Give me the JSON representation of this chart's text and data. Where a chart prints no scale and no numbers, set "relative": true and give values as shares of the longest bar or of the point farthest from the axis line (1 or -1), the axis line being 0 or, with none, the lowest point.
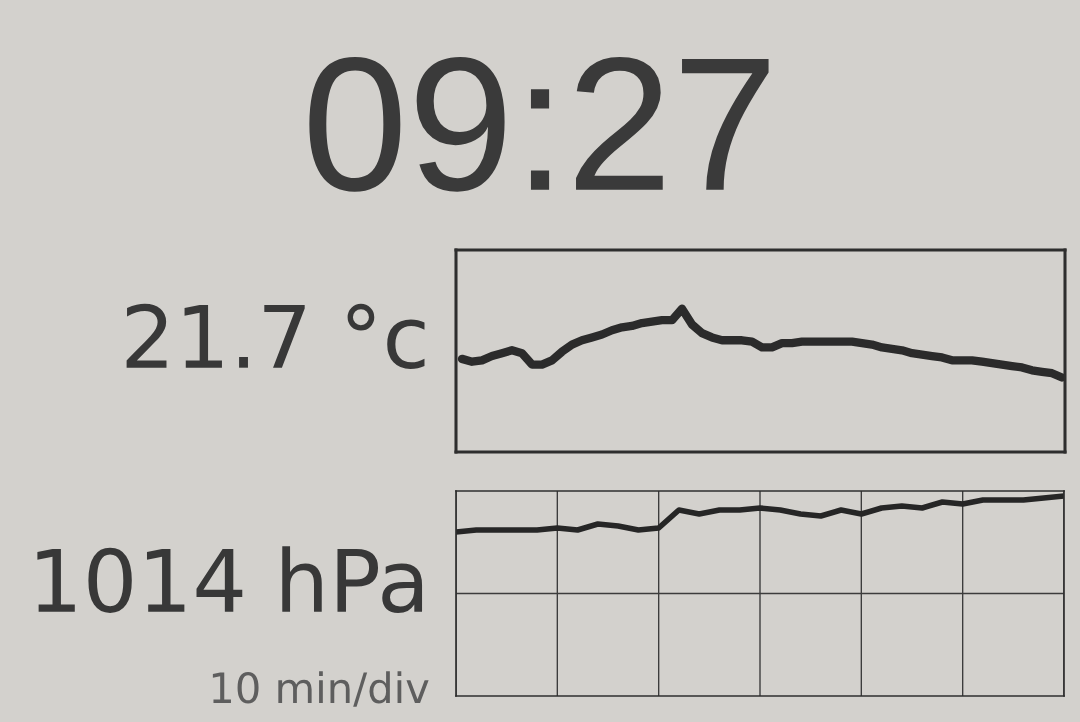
{
  "chart_data": [
    {
      "type": "other",
      "title": "09:27"
    },
    {
      "type": "line",
      "ylabel": "21.7 °c",
      "relative": true,
      "color": "#2b2b2b",
      "categories": [
        null,
        null,
        null,
        null,
        null,
        null,
        null,
        null,
        null,
        null,
        null,
        null,
        null,
        null,
        null,
        null,
        null,
        null,
        null,
        null,
        null,
        null,
        null,
        null,
        null,
        null,
        null,
        null,
        null,
        null,
        null,
        null,
        null,
        null,
        null,
        null,
        null,
        null,
        null,
        null,
        null,
        null,
        null,
        null,
        null,
        null,
        null,
        null,
        null,
        null,
        null,
        null,
        null,
        null,
        null,
        null,
        null,
        null,
        null,
        null,
        null
      ],
      "values": [
        0.65,
        0.63,
        0.64,
        0.67,
        0.69,
        0.71,
        0.69,
        0.61,
        0.61,
        0.64,
        0.7,
        0.75,
        0.78,
        0.8,
        0.82,
        0.85,
        0.87,
        0.88,
        0.9,
        0.91,
        0.92,
        0.92,
        1.0,
        0.89,
        0.83,
        0.8,
        0.78,
        0.78,
        0.78,
        0.77,
        0.73,
        0.73,
        0.76,
        0.76,
        0.77,
        0.77,
        0.77,
        0.77,
        0.77,
        0.77,
        0.76,
        0.75,
        0.73,
        0.72,
        0.71,
        0.69,
        0.68,
        0.67,
        0.66,
        0.64,
        0.64,
        0.64,
        0.63,
        0.62,
        0.61,
        0.6,
        0.59,
        0.57,
        0.56,
        0.55,
        0.52
      ]
    },
    {
      "type": "line",
      "ylabel": "1014 hPa",
      "annotations": [
        "10 min/div"
      ],
      "relative": true,
      "grid": true,
      "color": "#262626",
      "categories": [
        null,
        null,
        null,
        null,
        null,
        null,
        null,
        null,
        null,
        null,
        null,
        null,
        null,
        null,
        null,
        null,
        null,
        null,
        null,
        null,
        null,
        null,
        null,
        null,
        null,
        null,
        null,
        null,
        null,
        null,
        null
      ],
      "values": [
        0.82,
        0.83,
        0.83,
        0.83,
        0.83,
        0.84,
        0.83,
        0.86,
        0.85,
        0.83,
        0.84,
        0.93,
        0.91,
        0.93,
        0.93,
        0.94,
        0.93,
        0.91,
        0.9,
        0.93,
        0.91,
        0.94,
        0.95,
        0.94,
        0.97,
        0.96,
        0.98,
        0.98,
        0.98,
        0.99,
        1.0
      ]
    }
  ]
}
